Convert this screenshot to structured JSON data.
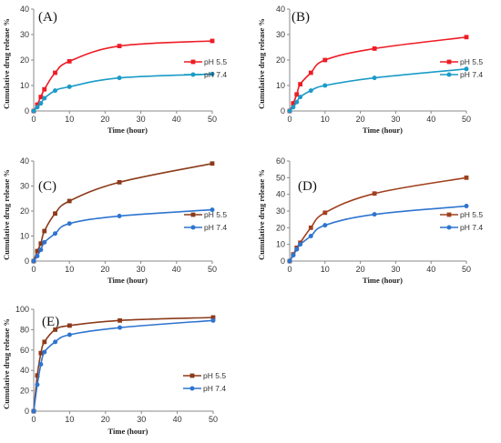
{
  "chart_data": [
    {
      "type": "line",
      "label": "(A)",
      "xlabel": "Time (hour)",
      "ylabel": "Cumulative drug release %",
      "xlim": [
        0,
        50
      ],
      "ylim": [
        0,
        40
      ],
      "xticks": [
        "0",
        "10",
        "20",
        "30",
        "40",
        "50"
      ],
      "yticks": [
        "0",
        "10",
        "20",
        "30",
        "40"
      ],
      "legend": "right",
      "series": [
        {
          "name": "pH 5.5",
          "color": "#ee1c25",
          "marker": "square",
          "x": [
            0,
            1,
            2,
            3,
            6,
            10,
            24,
            50
          ],
          "y": [
            0,
            2.5,
            5.5,
            8.5,
            15,
            19.5,
            25.5,
            27.5
          ]
        },
        {
          "name": "pH 7.4",
          "color": "#1a9bc8",
          "marker": "circle",
          "x": [
            0,
            1,
            2,
            3,
            6,
            10,
            24,
            50
          ],
          "y": [
            0,
            1.5,
            3,
            5,
            8,
            9.5,
            13,
            14.5
          ]
        }
      ]
    },
    {
      "type": "line",
      "label": "(B)",
      "xlabel": "Time (hour)",
      "ylabel": "Cumulative drug release %",
      "xlim": [
        0,
        50
      ],
      "ylim": [
        0,
        40
      ],
      "xticks": [
        "0",
        "10",
        "20",
        "30",
        "40",
        "50"
      ],
      "yticks": [
        "0",
        "10",
        "20",
        "30",
        "40"
      ],
      "legend": "right",
      "series": [
        {
          "name": "pH 5.5",
          "color": "#ee1c25",
          "marker": "square",
          "x": [
            0,
            1,
            2,
            3,
            6,
            10,
            24,
            50
          ],
          "y": [
            0,
            3,
            6.5,
            10.5,
            15,
            20,
            24.5,
            29
          ]
        },
        {
          "name": "pH 7.4",
          "color": "#1a9bc8",
          "marker": "circle",
          "x": [
            0,
            1,
            2,
            3,
            6,
            10,
            24,
            50
          ],
          "y": [
            0,
            1.5,
            3.5,
            5.5,
            8,
            10,
            13,
            16.5
          ]
        }
      ]
    },
    {
      "type": "line",
      "label": "(C)",
      "xlabel": "Time (hour)",
      "ylabel": "Cumulative drug release %",
      "xlim": [
        0,
        50
      ],
      "ylim": [
        0,
        40
      ],
      "xticks": [
        "0",
        "10",
        "20",
        "30",
        "40",
        "50"
      ],
      "yticks": [
        "0",
        "10",
        "20",
        "30",
        "40"
      ],
      "legend": "right",
      "series": [
        {
          "name": "pH 5.5",
          "color": "#8b3a1a",
          "marker": "square",
          "x": [
            0,
            1,
            2,
            3,
            6,
            10,
            24,
            50
          ],
          "y": [
            0,
            4,
            7,
            12,
            19,
            24,
            31.5,
            39
          ]
        },
        {
          "name": "pH 7.4",
          "color": "#2e74d0",
          "marker": "circle",
          "x": [
            0,
            1,
            2,
            3,
            6,
            10,
            24,
            50
          ],
          "y": [
            0,
            2,
            4.5,
            7.5,
            11,
            15,
            18,
            20.5
          ]
        }
      ]
    },
    {
      "type": "line",
      "label": "(D)",
      "xlabel": "Time (hour)",
      "ylabel": "Cumulative drug release %",
      "xlim": [
        0,
        50
      ],
      "ylim": [
        0,
        60
      ],
      "xticks": [
        "0",
        "10",
        "20",
        "30",
        "40",
        "50"
      ],
      "yticks": [
        "0",
        "10",
        "20",
        "30",
        "40",
        "50",
        "60"
      ],
      "legend": "right",
      "series": [
        {
          "name": "pH 5.5",
          "color": "#a0401e",
          "marker": "square",
          "x": [
            0,
            1,
            2,
            3,
            6,
            10,
            24,
            50
          ],
          "y": [
            0,
            4,
            8,
            11,
            20,
            29,
            40.5,
            50
          ]
        },
        {
          "name": "pH 7.4",
          "color": "#2e74d0",
          "marker": "circle",
          "x": [
            0,
            1,
            2,
            3,
            6,
            10,
            24,
            50
          ],
          "y": [
            0,
            3.5,
            7,
            10,
            15,
            21.5,
            28,
            33
          ]
        }
      ]
    },
    {
      "type": "line",
      "label": "(E)",
      "xlabel": "Time (hour)",
      "ylabel": "Cumulative drug release %",
      "xlim": [
        0,
        50
      ],
      "ylim": [
        0,
        100
      ],
      "xticks": [
        "0",
        "10",
        "20",
        "30",
        "40",
        "50"
      ],
      "yticks": [
        "0",
        "20",
        "40",
        "60",
        "80",
        "100"
      ],
      "legend": "left",
      "series": [
        {
          "name": "pH 5.5",
          "color": "#8b3a1a",
          "marker": "square",
          "x": [
            0,
            1,
            2,
            3,
            6,
            10,
            24,
            50
          ],
          "y": [
            0,
            35,
            57,
            68,
            80,
            84,
            89,
            92
          ]
        },
        {
          "name": "pH 7.4",
          "color": "#2e74d0",
          "marker": "circle",
          "x": [
            0,
            1,
            2,
            3,
            6,
            10,
            24,
            50
          ],
          "y": [
            0,
            26,
            46,
            58,
            68,
            75,
            82,
            89
          ]
        }
      ]
    }
  ]
}
